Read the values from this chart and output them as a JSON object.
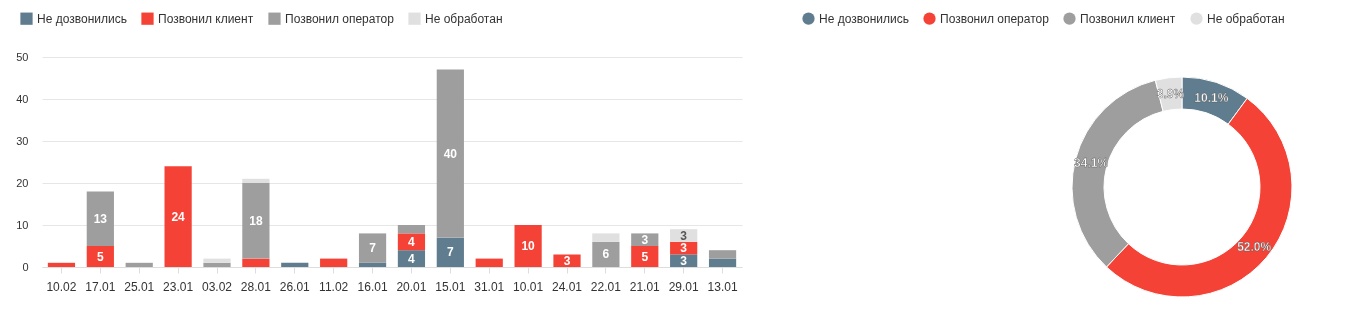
{
  "chart_data": [
    {
      "type": "bar",
      "stacked": true,
      "legend": "top left",
      "grid": "y",
      "categories": [
        "10.02",
        "17.01",
        "25.01",
        "23.01",
        "03.02",
        "28.01",
        "26.01",
        "11.02",
        "16.01",
        "20.01",
        "15.01",
        "31.01",
        "10.01",
        "24.01",
        "22.01",
        "21.01",
        "29.01",
        "13.01"
      ],
      "ylim": [
        0,
        50
      ],
      "yticks": [
        0,
        10,
        20,
        30,
        40,
        50
      ],
      "series": [
        {
          "name": "Не дозвонились",
          "color": "#5f7d8e",
          "values": [
            0,
            0,
            0,
            0,
            0,
            0,
            1,
            0,
            1,
            4,
            7,
            0,
            0,
            0,
            0,
            0,
            3,
            2
          ],
          "value_labels": [
            null,
            null,
            null,
            null,
            null,
            null,
            null,
            null,
            null,
            "4",
            "7",
            null,
            null,
            null,
            null,
            null,
            "3",
            null
          ]
        },
        {
          "name": "Позвонил клиент",
          "color": "#f44336",
          "values": [
            1,
            5,
            0,
            24,
            0,
            2,
            0,
            2,
            0,
            4,
            0,
            2,
            10,
            3,
            0,
            5,
            3,
            0
          ],
          "value_labels": [
            null,
            "5",
            null,
            "24",
            null,
            null,
            null,
            null,
            null,
            "4",
            null,
            null,
            "10",
            "3",
            null,
            "5",
            "3",
            null
          ]
        },
        {
          "name": "Позвонил оператор",
          "color": "#9e9e9e",
          "values": [
            0,
            13,
            1,
            0,
            1,
            18,
            0,
            0,
            7,
            2,
            40,
            0,
            0,
            0,
            6,
            3,
            0,
            2
          ],
          "value_labels": [
            null,
            "13",
            null,
            null,
            null,
            "18",
            null,
            null,
            "7",
            null,
            "40",
            null,
            null,
            null,
            "6",
            "3",
            null,
            null
          ]
        },
        {
          "name": "Не обработан",
          "color": "#e0e0e0",
          "values": [
            0,
            0,
            0,
            0,
            1,
            1,
            0,
            0,
            0,
            0,
            0,
            0,
            0,
            0,
            2,
            0,
            3,
            0
          ],
          "value_labels": [
            null,
            null,
            null,
            null,
            null,
            null,
            null,
            null,
            null,
            null,
            null,
            null,
            null,
            null,
            null,
            null,
            "3",
            null
          ]
        }
      ]
    },
    {
      "type": "donut",
      "legend": "top",
      "categories": [
        "Не дозвонились",
        "Позвонил оператор",
        "Позвонил клиент",
        "Не обработан"
      ],
      "values": [
        10.1,
        52.0,
        34.1,
        3.9
      ],
      "colors": [
        "#5f7d8e",
        "#f44336",
        "#9e9e9e",
        "#e0e0e0"
      ],
      "value_labels": [
        "10.1%",
        "52.0%",
        "34.1%",
        "3.9%"
      ]
    }
  ]
}
